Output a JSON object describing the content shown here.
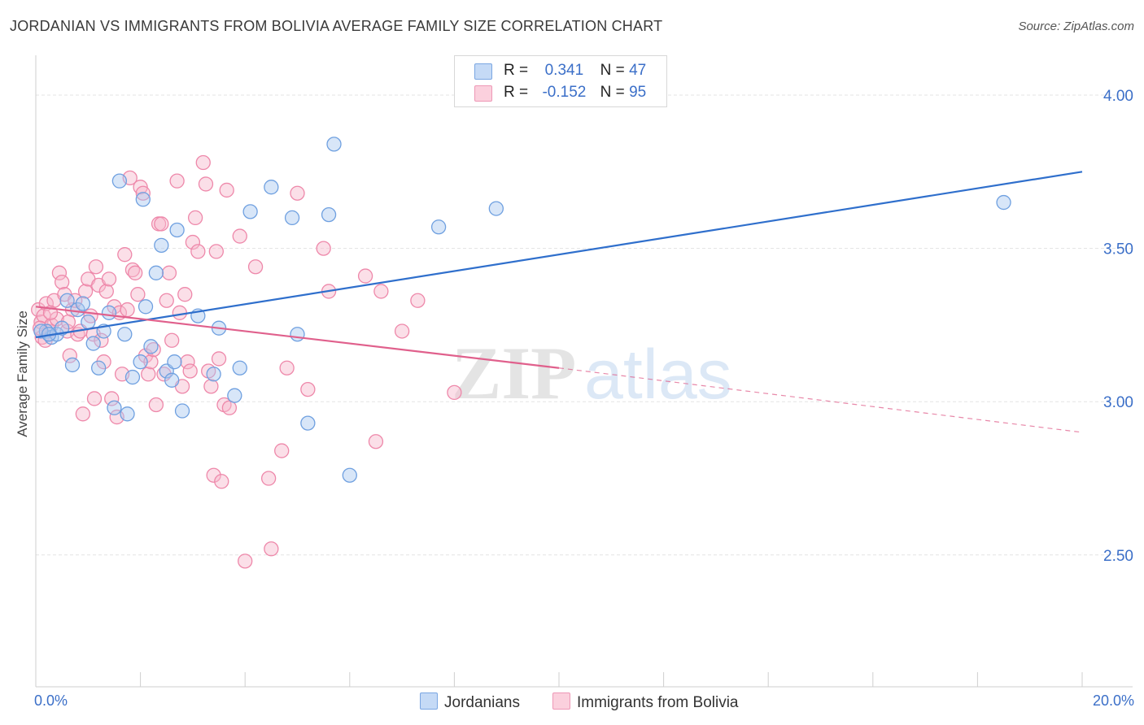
{
  "title": "JORDANIAN VS IMMIGRANTS FROM BOLIVIA AVERAGE FAMILY SIZE CORRELATION CHART",
  "source": "Source: ZipAtlas.com",
  "watermark": {
    "zip": "ZIP",
    "atlas": "atlas"
  },
  "legend": {
    "rows": [
      {
        "r_label": "R =",
        "r_value": "0.341",
        "n_label": "N =",
        "n_value": "47",
        "color": "#a8c8f0"
      },
      {
        "r_label": "R =",
        "r_value": "-0.152",
        "n_label": "N =",
        "n_value": "95",
        "color": "#f6b8cc"
      }
    ]
  },
  "bottom_legend": [
    {
      "label": "Jordanians",
      "color": "#a8c8f0"
    },
    {
      "label": "Immigrants from Bolivia",
      "color": "#f6b8cc"
    }
  ],
  "chart_data": {
    "type": "scatter",
    "ylabel": "Average Family Size",
    "xlim": [
      0,
      20
    ],
    "ylim": [
      2.07,
      4.13
    ],
    "x_tick_labels": [
      {
        "value": 0,
        "label": "0.0%"
      },
      {
        "value": 20,
        "label": "20.0%"
      }
    ],
    "y_ticks": [
      {
        "value": 4.0,
        "label": "4.00"
      },
      {
        "value": 3.5,
        "label": "3.50"
      },
      {
        "value": 3.0,
        "label": "3.00"
      },
      {
        "value": 2.5,
        "label": "2.50"
      }
    ],
    "x_minor_ticks": [
      0,
      2,
      4,
      6,
      8,
      10,
      12,
      14,
      16,
      18,
      20
    ],
    "grid": true,
    "legend_position": "top-center",
    "series": [
      {
        "name": "Jordanians",
        "color": "#6fa0e0",
        "fill": "#a8c8f0",
        "trend": {
          "x0": 0.0,
          "y0": 3.21,
          "x1": 20.0,
          "y1": 3.75,
          "style": "solid",
          "line_color": "#2f6fcc"
        },
        "points": [
          [
            0.2,
            3.23
          ],
          [
            0.3,
            3.21
          ],
          [
            0.4,
            3.22
          ],
          [
            0.5,
            3.24
          ],
          [
            0.6,
            3.33
          ],
          [
            0.7,
            3.12
          ],
          [
            0.8,
            3.3
          ],
          [
            0.9,
            3.32
          ],
          [
            1.0,
            3.26
          ],
          [
            1.1,
            3.19
          ],
          [
            1.2,
            3.11
          ],
          [
            1.3,
            3.23
          ],
          [
            1.4,
            3.29
          ],
          [
            1.5,
            2.98
          ],
          [
            1.6,
            3.72
          ],
          [
            1.7,
            3.22
          ],
          [
            1.75,
            2.96
          ],
          [
            1.85,
            3.08
          ],
          [
            2.0,
            3.13
          ],
          [
            2.05,
            3.66
          ],
          [
            2.1,
            3.31
          ],
          [
            2.2,
            3.18
          ],
          [
            2.3,
            3.42
          ],
          [
            2.4,
            3.51
          ],
          [
            2.5,
            3.1
          ],
          [
            2.6,
            3.07
          ],
          [
            2.65,
            3.13
          ],
          [
            2.7,
            3.56
          ],
          [
            2.8,
            2.97
          ],
          [
            3.1,
            3.28
          ],
          [
            3.4,
            3.09
          ],
          [
            3.5,
            3.24
          ],
          [
            3.8,
            3.02
          ],
          [
            3.9,
            3.11
          ],
          [
            4.1,
            3.62
          ],
          [
            4.5,
            3.7
          ],
          [
            4.9,
            3.6
          ],
          [
            5.0,
            3.22
          ],
          [
            5.2,
            2.93
          ],
          [
            5.6,
            3.61
          ],
          [
            5.7,
            3.84
          ],
          [
            6.0,
            2.76
          ],
          [
            7.7,
            3.57
          ],
          [
            8.8,
            3.63
          ],
          [
            18.5,
            3.65
          ],
          [
            0.1,
            3.23
          ],
          [
            0.25,
            3.22
          ]
        ]
      },
      {
        "name": "Immigrants from Bolivia",
        "color": "#ee88aa",
        "fill": "#f6b8cc",
        "trend": {
          "x0": 0.0,
          "y0": 3.31,
          "x1": 10.0,
          "y1": 3.11,
          "style": "solid",
          "line_color": "#e0608c",
          "ext_x1": 20.0,
          "ext_y1": 2.9,
          "ext_style": "dashed"
        },
        "points": [
          [
            0.05,
            3.3
          ],
          [
            0.1,
            3.26
          ],
          [
            0.12,
            3.21
          ],
          [
            0.15,
            3.28
          ],
          [
            0.2,
            3.32
          ],
          [
            0.25,
            3.23
          ],
          [
            0.3,
            3.25
          ],
          [
            0.35,
            3.33
          ],
          [
            0.4,
            3.27
          ],
          [
            0.45,
            3.42
          ],
          [
            0.5,
            3.39
          ],
          [
            0.55,
            3.35
          ],
          [
            0.6,
            3.23
          ],
          [
            0.65,
            3.15
          ],
          [
            0.7,
            3.3
          ],
          [
            0.75,
            3.33
          ],
          [
            0.8,
            3.22
          ],
          [
            0.85,
            3.23
          ],
          [
            0.9,
            2.96
          ],
          [
            0.95,
            3.36
          ],
          [
            1.0,
            3.4
          ],
          [
            1.05,
            3.28
          ],
          [
            1.1,
            3.22
          ],
          [
            1.15,
            3.44
          ],
          [
            1.2,
            3.38
          ],
          [
            1.25,
            3.2
          ],
          [
            1.3,
            3.13
          ],
          [
            1.35,
            3.36
          ],
          [
            1.4,
            3.4
          ],
          [
            1.45,
            3.01
          ],
          [
            1.5,
            3.31
          ],
          [
            1.55,
            2.95
          ],
          [
            1.6,
            3.29
          ],
          [
            1.65,
            3.09
          ],
          [
            1.7,
            3.48
          ],
          [
            1.75,
            3.3
          ],
          [
            1.8,
            3.73
          ],
          [
            1.85,
            3.43
          ],
          [
            1.9,
            3.42
          ],
          [
            1.95,
            3.35
          ],
          [
            2.0,
            3.7
          ],
          [
            2.05,
            3.68
          ],
          [
            2.1,
            3.15
          ],
          [
            2.15,
            3.09
          ],
          [
            2.2,
            3.13
          ],
          [
            2.3,
            2.99
          ],
          [
            2.35,
            3.58
          ],
          [
            2.4,
            3.58
          ],
          [
            2.45,
            3.09
          ],
          [
            2.5,
            3.33
          ],
          [
            2.55,
            3.42
          ],
          [
            2.6,
            3.2
          ],
          [
            2.7,
            3.72
          ],
          [
            2.75,
            3.29
          ],
          [
            2.8,
            3.05
          ],
          [
            2.85,
            3.35
          ],
          [
            2.9,
            3.13
          ],
          [
            3.0,
            3.52
          ],
          [
            3.05,
            3.6
          ],
          [
            3.1,
            3.49
          ],
          [
            3.2,
            3.78
          ],
          [
            3.25,
            3.71
          ],
          [
            3.3,
            3.1
          ],
          [
            3.4,
            2.76
          ],
          [
            3.45,
            3.49
          ],
          [
            3.5,
            3.14
          ],
          [
            3.55,
            2.74
          ],
          [
            3.6,
            2.99
          ],
          [
            3.65,
            3.69
          ],
          [
            3.7,
            2.98
          ],
          [
            3.9,
            3.54
          ],
          [
            4.0,
            2.48
          ],
          [
            4.2,
            3.44
          ],
          [
            4.45,
            2.75
          ],
          [
            4.5,
            2.52
          ],
          [
            4.7,
            2.84
          ],
          [
            4.8,
            3.11
          ],
          [
            5.0,
            3.68
          ],
          [
            5.2,
            3.04
          ],
          [
            5.5,
            3.5
          ],
          [
            5.6,
            3.36
          ],
          [
            6.3,
            3.41
          ],
          [
            6.5,
            2.87
          ],
          [
            6.6,
            3.36
          ],
          [
            7.0,
            3.23
          ],
          [
            7.3,
            3.33
          ],
          [
            8.0,
            3.03
          ],
          [
            0.08,
            3.24
          ],
          [
            0.18,
            3.2
          ],
          [
            0.28,
            3.29
          ],
          [
            1.12,
            3.01
          ],
          [
            2.25,
            3.17
          ],
          [
            2.95,
            3.1
          ],
          [
            3.35,
            3.05
          ],
          [
            0.62,
            3.26
          ]
        ]
      }
    ]
  }
}
